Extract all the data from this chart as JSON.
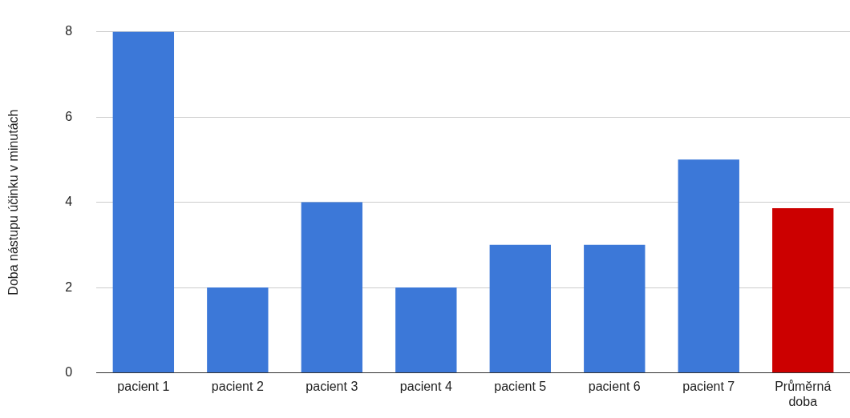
{
  "chart_data": {
    "type": "bar",
    "ylabel": "Doba nástupu účinku v minutách",
    "categories": [
      "pacient 1",
      "pacient 2",
      "pacient 3",
      "pacient 4",
      "pacient 5",
      "pacient 6",
      "pacient 7",
      "Průměrná doba"
    ],
    "values": [
      8,
      2,
      4,
      2,
      3,
      3,
      5,
      3.86
    ],
    "colors": [
      "#3c78d8",
      "#3c78d8",
      "#3c78d8",
      "#3c78d8",
      "#3c78d8",
      "#3c78d8",
      "#3c78d8",
      "#cc0000"
    ],
    "ylim": [
      0,
      8
    ],
    "yticks": [
      0,
      2,
      4,
      6,
      8
    ],
    "grid": "y",
    "legend": false
  }
}
